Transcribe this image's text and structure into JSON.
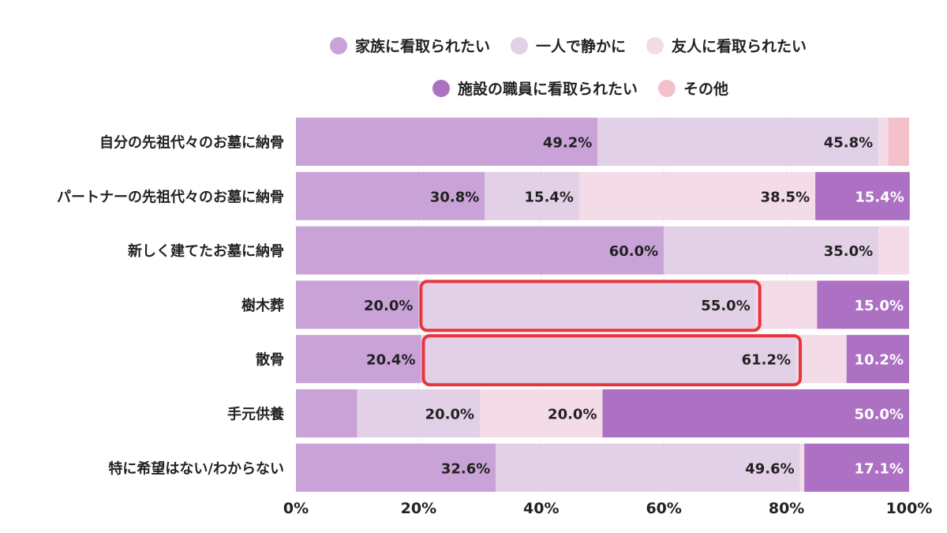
{
  "chart_data": {
    "type": "bar",
    "orientation": "horizontal",
    "stacked": true,
    "categories": [
      "自分の先祖代々のお墓に納骨",
      "パートナーの先祖代々のお墓に納骨",
      "新しく建てたお墓に納骨",
      "樹木葬",
      "散骨",
      "手元供養",
      "特に希望はない/わからない"
    ],
    "series": [
      {
        "name": "家族に看取られたい",
        "color": "#c9a3d8",
        "label_color": "#222222",
        "values": [
          49.2,
          30.8,
          60.0,
          20.0,
          20.4,
          10.0,
          32.6
        ],
        "labels": [
          "49.2%",
          "30.8%",
          "60.0%",
          "20.0%",
          "20.4%",
          "",
          "32.6%"
        ]
      },
      {
        "name": "一人で静かに",
        "color": "#e2d0e6",
        "label_color": "#222222",
        "values": [
          45.8,
          15.4,
          35.0,
          55.0,
          61.2,
          20.0,
          49.6
        ],
        "labels": [
          "45.8%",
          "15.4%",
          "35.0%",
          "55.0%",
          "61.2%",
          "20.0%",
          "49.6%"
        ]
      },
      {
        "name": "友人に看取られたい",
        "color": "#f3dbe7",
        "label_color": "#222222",
        "values": [
          1.6,
          38.5,
          5.0,
          10.0,
          8.2,
          20.0,
          0.7
        ],
        "labels": [
          "",
          "38.5%",
          "",
          "",
          "",
          "20.0%",
          ""
        ]
      },
      {
        "name": "施設の職員に看取られたい",
        "color": "#ad71c3",
        "label_color": "#ffffff",
        "values": [
          0,
          15.4,
          0,
          15.0,
          10.2,
          50.0,
          17.1
        ],
        "labels": [
          "",
          "15.4%",
          "",
          "15.0%",
          "10.2%",
          "50.0%",
          "17.1%"
        ]
      },
      {
        "name": "その他",
        "color": "#f3c1c9",
        "label_color": "#222222",
        "values": [
          3.4,
          0,
          0,
          0,
          0,
          0,
          0
        ],
        "labels": [
          "",
          "",
          "",
          "",
          "",
          "",
          ""
        ]
      }
    ],
    "xlim": [
      0,
      100
    ],
    "xticks": [
      "0%",
      "20%",
      "40%",
      "60%",
      "80%",
      "100%"
    ],
    "grid": true,
    "legend_position": "top",
    "highlights": [
      {
        "category": "樹木葬",
        "series": "一人で静かに"
      },
      {
        "category": "散骨",
        "series": "一人で静かに"
      }
    ],
    "highlight_color": "#e8343c"
  }
}
